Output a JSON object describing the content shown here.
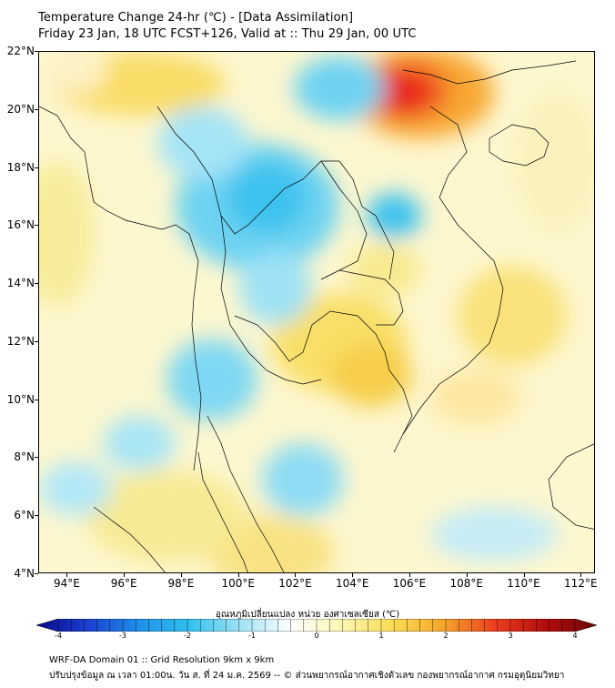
{
  "header": {
    "title_line1": "Temperature Change 24-hr (℃) - [Data Assimilation]",
    "title_line2": "Friday 23 Jan, 18 UTC FCST+126, Valid at :: Thu 29 Jan, 00 UTC"
  },
  "map": {
    "lat_labels": [
      "22°N",
      "20°N",
      "18°N",
      "16°N",
      "14°N",
      "12°N",
      "10°N",
      "8°N",
      "6°N",
      "4°N"
    ],
    "lon_labels": [
      "94°E",
      "96°E",
      "98°E",
      "100°E",
      "102°E",
      "104°E",
      "106°E",
      "108°E",
      "110°E",
      "112°E"
    ],
    "lat_range": [
      4,
      22
    ],
    "lon_range": [
      93,
      112.5
    ],
    "colors": {
      "background": "#fdf7cf",
      "warm_light": "#f7ec9a",
      "warm": "#fad55a",
      "hot": "#f2392a",
      "cool_light": "#c6ecf7",
      "cool": "#6ed3f2",
      "cold": "#27b7ea",
      "border_line": "#000000"
    }
  },
  "colorbar": {
    "label": "อุณหภูมิเปลี่ยนแปลง หน่วย องศาเซลเซียส (℃)",
    "ticks": [
      "-4",
      "-3",
      "-2",
      "-1",
      "0",
      "1",
      "2",
      "3",
      "4"
    ],
    "range": [
      -4,
      4
    ],
    "colors": [
      "#08088a",
      "#1a3fd0",
      "#1f8fe8",
      "#31c0ee",
      "#9ee3f5",
      "#ffffff",
      "#fbf6b0",
      "#fadc55",
      "#f6a52b",
      "#ec3e1e",
      "#b30c0c",
      "#6a0707"
    ]
  },
  "footer": {
    "line1": "WRF-DA Domain 01 :: Grid Resolution 9km x 9km",
    "line2": "ปรับปรุงข้อมูล ณ เวลา 01:00น. วัน ส. ที่ 24 ม.ค. 2569 -- © ส่วนพยากรณ์อากาศเชิงตัวเลข กองพยากรณ์อากาศ กรมอุตุนิยมวิทยา"
  }
}
